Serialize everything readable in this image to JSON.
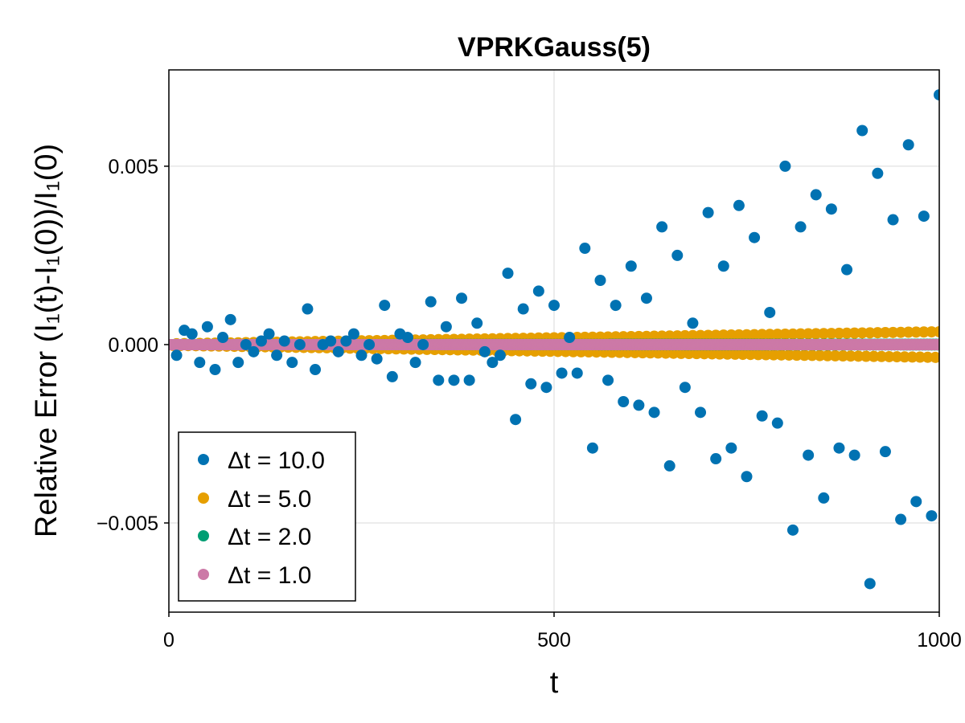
{
  "chart_data": {
    "type": "scatter",
    "title": "VPRKGauss(5)",
    "xlabel": "t",
    "ylabel": "Relative Error (I₁(t)-I₁(0))/I₁(0)",
    "xlim": [
      0,
      1000
    ],
    "ylim": [
      -0.0075,
      0.0077
    ],
    "xticks": [
      0,
      500,
      1000
    ],
    "xtick_labels": [
      "0",
      "500",
      "1000"
    ],
    "yticks": [
      0.005,
      0.0,
      -0.005
    ],
    "ytick_labels": [
      "0.005",
      "0.000",
      "−0.005"
    ],
    "grid": true,
    "legend_position": "bottom-left",
    "series": [
      {
        "name": "Δt = 10.0",
        "color": "#0072b2",
        "x": [
          10,
          20,
          30,
          40,
          50,
          60,
          70,
          80,
          90,
          100,
          110,
          120,
          130,
          140,
          150,
          160,
          170,
          180,
          190,
          200,
          210,
          220,
          230,
          240,
          250,
          260,
          270,
          280,
          290,
          300,
          310,
          320,
          330,
          340,
          350,
          360,
          370,
          380,
          390,
          400,
          410,
          420,
          430,
          440,
          450,
          460,
          470,
          480,
          490,
          500,
          510,
          520,
          530,
          540,
          550,
          560,
          570,
          580,
          590,
          600,
          610,
          620,
          630,
          640,
          650,
          660,
          670,
          680,
          690,
          700,
          710,
          720,
          730,
          740,
          750,
          760,
          770,
          780,
          790,
          800,
          810,
          820,
          830,
          840,
          850,
          860,
          870,
          880,
          890,
          900,
          910,
          920,
          930,
          940,
          950,
          960,
          970,
          980,
          990,
          1000
        ],
        "y": [
          -0.0003,
          0.0004,
          0.0003,
          -0.0005,
          0.0005,
          -0.0007,
          0.0002,
          0.0007,
          -0.0005,
          0.0,
          -0.0002,
          0.0001,
          0.0003,
          -0.0003,
          0.0001,
          -0.0005,
          0.0,
          0.001,
          -0.0007,
          0.0,
          0.0001,
          -0.0002,
          0.0001,
          0.0003,
          -0.0003,
          0.0,
          -0.0004,
          0.0011,
          -0.0009,
          0.0003,
          0.0002,
          -0.0005,
          0.0,
          0.0012,
          -0.001,
          0.0005,
          -0.001,
          0.0013,
          -0.001,
          0.0006,
          -0.0002,
          -0.0005,
          -0.0003,
          0.002,
          -0.0021,
          0.001,
          -0.0011,
          0.0015,
          -0.0012,
          0.0011,
          -0.0008,
          0.0002,
          -0.0008,
          0.0027,
          -0.0029,
          0.0018,
          -0.001,
          0.0011,
          -0.0016,
          0.0022,
          -0.0017,
          0.0013,
          -0.0019,
          0.0033,
          -0.0034,
          0.0025,
          -0.0012,
          0.0006,
          -0.0019,
          0.0037,
          -0.0032,
          0.0022,
          -0.0029,
          0.0039,
          -0.0037,
          0.003,
          -0.002,
          0.0009,
          -0.0022,
          0.005,
          -0.0052,
          0.0033,
          -0.0031,
          0.0042,
          -0.0043,
          0.0038,
          -0.0029,
          0.0021,
          -0.0031,
          0.006,
          -0.0067,
          0.0048,
          -0.003,
          0.0035,
          -0.0049,
          0.0056,
          -0.0044,
          0.0036,
          -0.0048,
          0.007
        ]
      },
      {
        "name": "Δt = 5.0",
        "color": "#e69f00",
        "amplitude_start": 2e-05,
        "amplitude_end": 0.00036,
        "count": 200
      },
      {
        "name": "Δt = 2.0",
        "color": "#009e73",
        "amplitude_start": 0.0,
        "amplitude_end": 1e-05,
        "count": 500
      },
      {
        "name": "Δt = 1.0",
        "color": "#cc79a7",
        "amplitude_start": 0.0,
        "amplitude_end": 0.0,
        "count": 1000
      }
    ]
  }
}
